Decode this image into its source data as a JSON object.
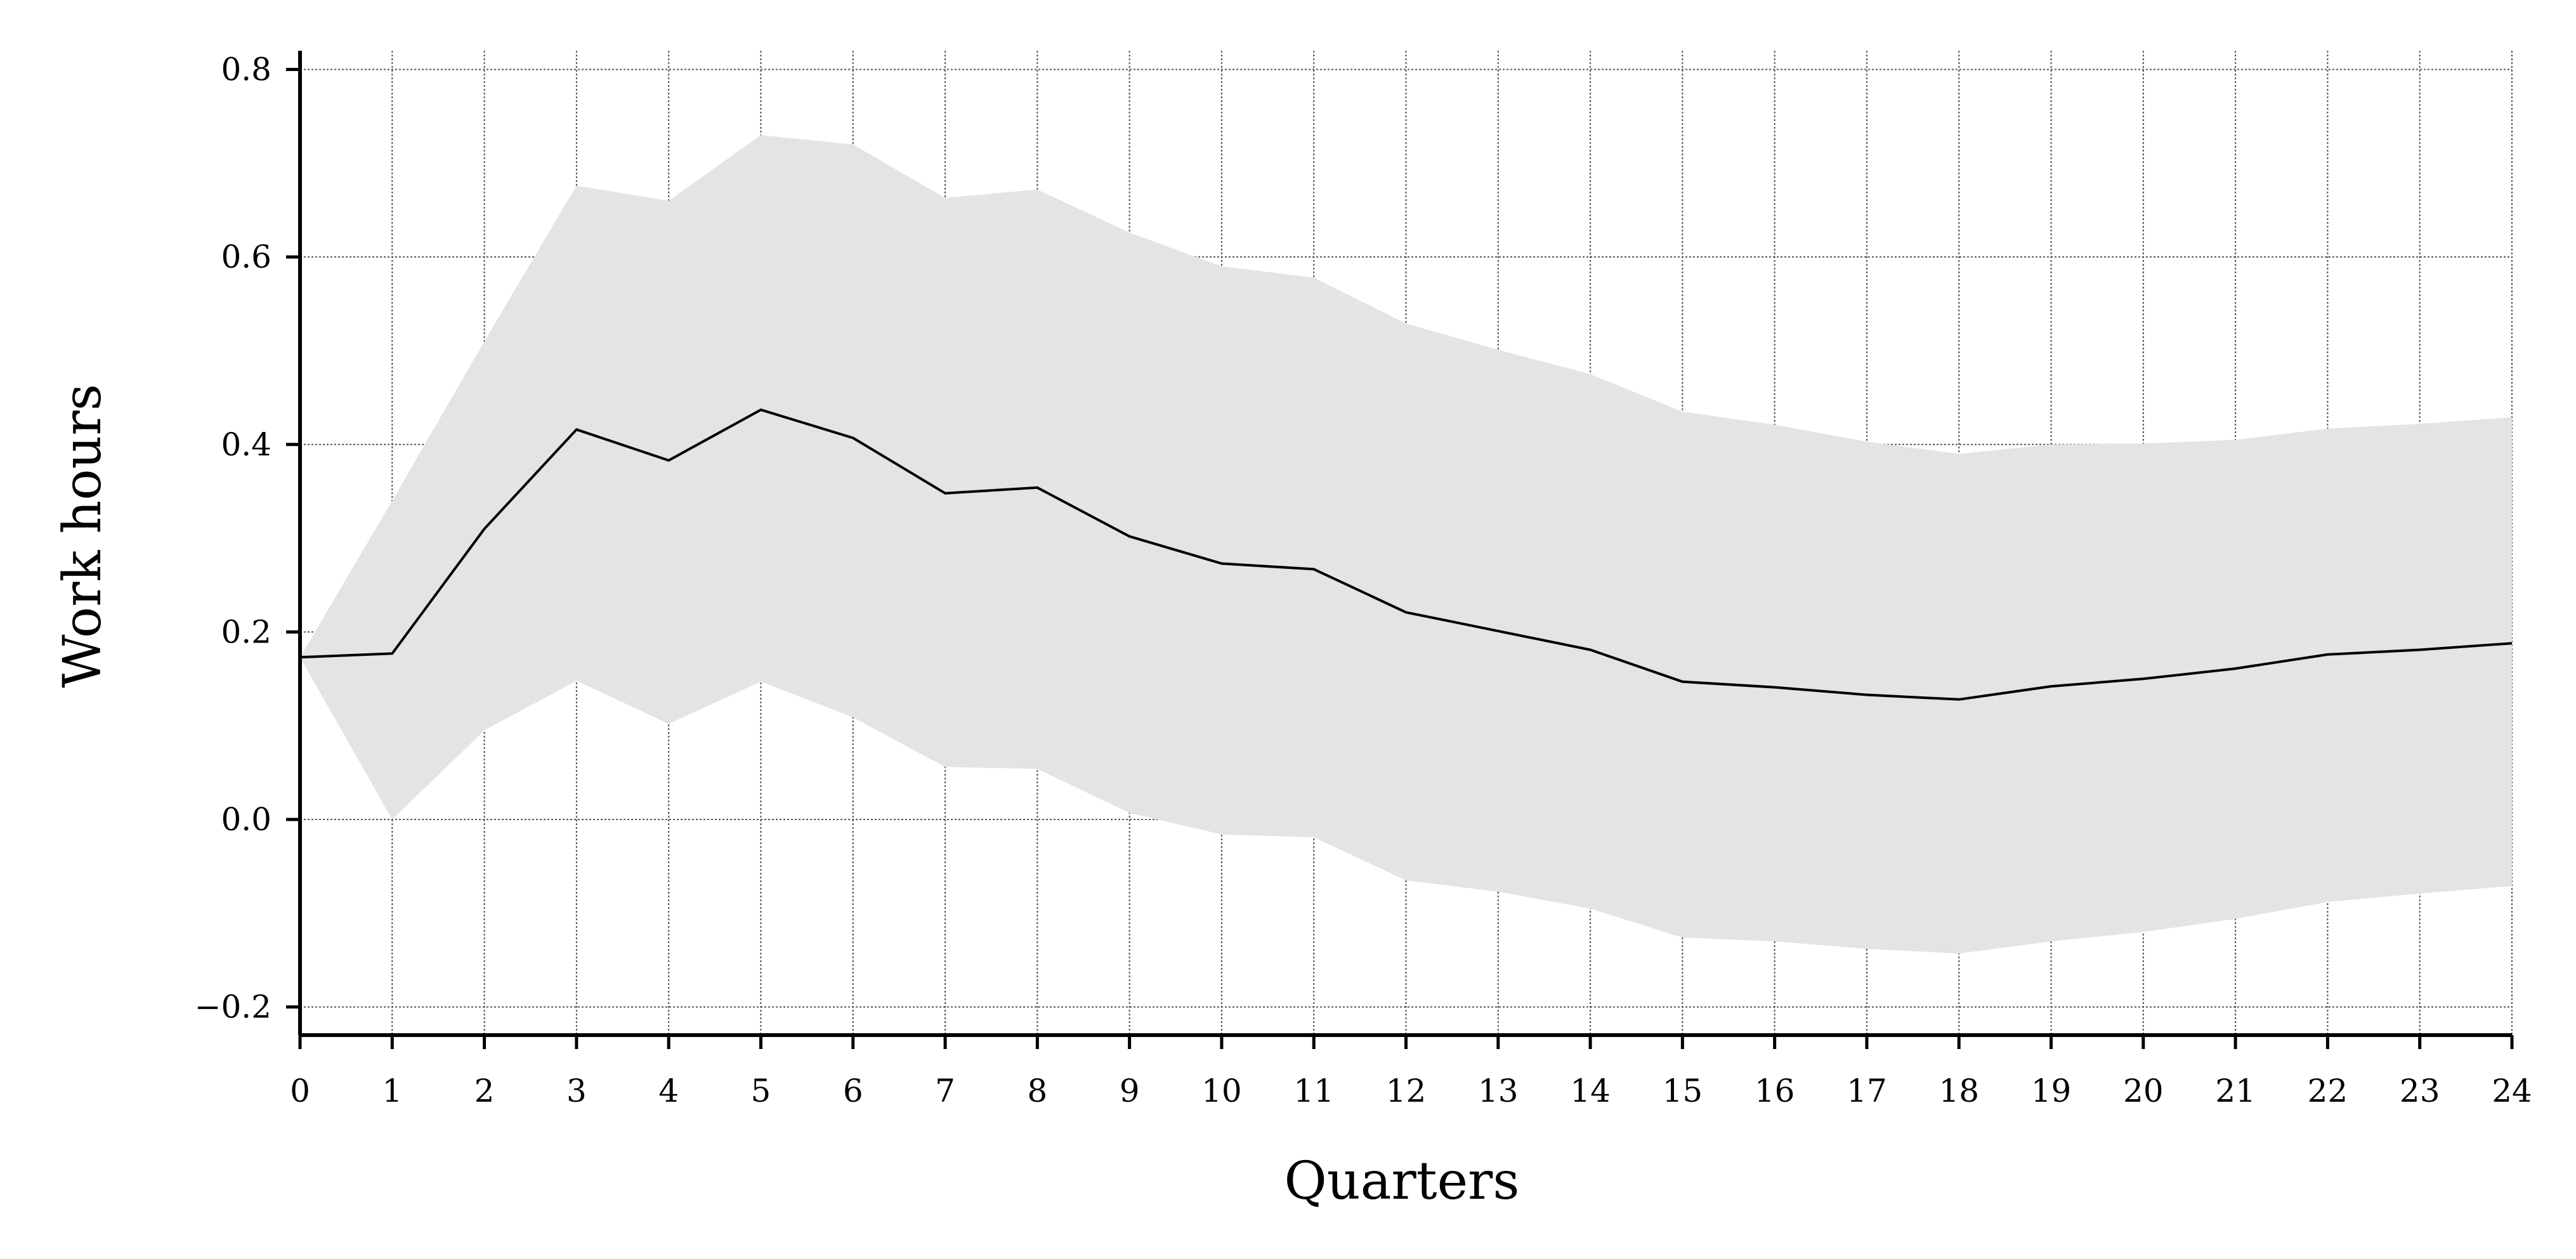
{
  "chart_data": {
    "type": "line",
    "title": "",
    "xlabel": "Quarters",
    "ylabel": "Work hours",
    "xlim": [
      0,
      24
    ],
    "ylim": [
      -0.23,
      0.82
    ],
    "grid": true,
    "x": [
      0,
      1,
      2,
      3,
      4,
      5,
      6,
      7,
      8,
      9,
      10,
      11,
      12,
      13,
      14,
      15,
      16,
      17,
      18,
      19,
      20,
      21,
      22,
      23,
      24
    ],
    "series": [
      {
        "values": [
          0.173,
          0.177,
          0.31,
          0.416,
          0.383,
          0.437,
          0.407,
          0.348,
          0.354,
          0.302,
          0.273,
          0.267,
          0.221,
          0.201,
          0.181,
          0.147,
          0.141,
          0.133,
          0.128,
          0.142,
          0.15,
          0.161,
          0.176,
          0.181,
          0.188
        ],
        "color": "#000000"
      }
    ],
    "band": {
      "upper": [
        0.173,
        0.34,
        0.51,
        0.676,
        0.66,
        0.73,
        0.72,
        0.663,
        0.672,
        0.626,
        0.59,
        0.578,
        0.529,
        0.501,
        0.475,
        0.435,
        0.421,
        0.403,
        0.39,
        0.4,
        0.401,
        0.405,
        0.417,
        0.422,
        0.429
      ],
      "lower": [
        0.173,
        0.0,
        0.095,
        0.148,
        0.102,
        0.147,
        0.109,
        0.056,
        0.054,
        0.007,
        -0.016,
        -0.019,
        -0.065,
        -0.077,
        -0.095,
        -0.126,
        -0.13,
        -0.138,
        -0.143,
        -0.13,
        -0.12,
        -0.106,
        -0.088,
        -0.079,
        -0.071
      ],
      "color": "#e4e4e4"
    },
    "x_ticks": [
      "0",
      "1",
      "2",
      "3",
      "4",
      "5",
      "6",
      "7",
      "8",
      "9",
      "10",
      "11",
      "12",
      "13",
      "14",
      "15",
      "16",
      "17",
      "18",
      "19",
      "20",
      "21",
      "22",
      "23",
      "24"
    ],
    "y_ticks": [
      {
        "value": 0.8,
        "label": "0.8"
      },
      {
        "value": 0.6,
        "label": "0.6"
      },
      {
        "value": 0.4,
        "label": "0.4"
      },
      {
        "value": 0.2,
        "label": "0.2"
      },
      {
        "value": 0.0,
        "label": "0.0"
      },
      {
        "value": -0.2,
        "label": "−0.2"
      }
    ]
  }
}
